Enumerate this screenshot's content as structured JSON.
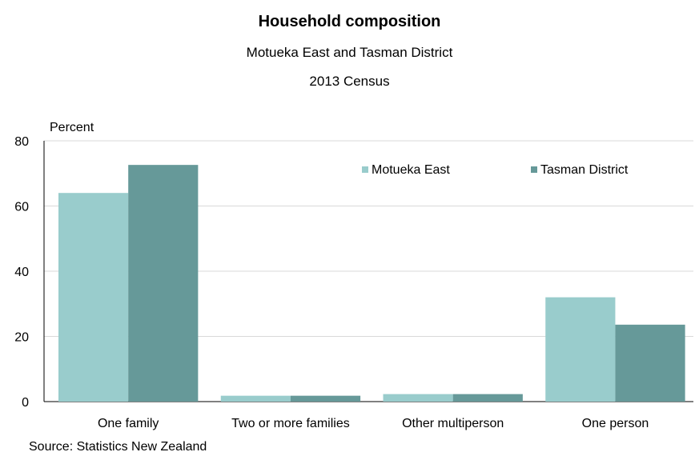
{
  "chart_data": {
    "type": "bar",
    "title": "Household composition",
    "subtitle": "Motueka East and Tasman District",
    "subtitle2": "2013 Census",
    "ylabel": "Percent",
    "xlabel": "",
    "ylim": [
      0,
      80
    ],
    "yticks": [
      "0",
      "20",
      "40",
      "60",
      "80"
    ],
    "grid": true,
    "legend_position": "top-right",
    "categories": [
      "One family",
      "Two or more families",
      "Other multiperson",
      "One person"
    ],
    "series": [
      {
        "name": "Motueka East",
        "color": "#99cccc",
        "values": [
          64,
          1.8,
          2.3,
          32
        ]
      },
      {
        "name": "Tasman District",
        "color": "#669999",
        "values": [
          72.6,
          1.8,
          2.3,
          23.6
        ]
      }
    ]
  },
  "source": "Source: Statistics New Zealand"
}
